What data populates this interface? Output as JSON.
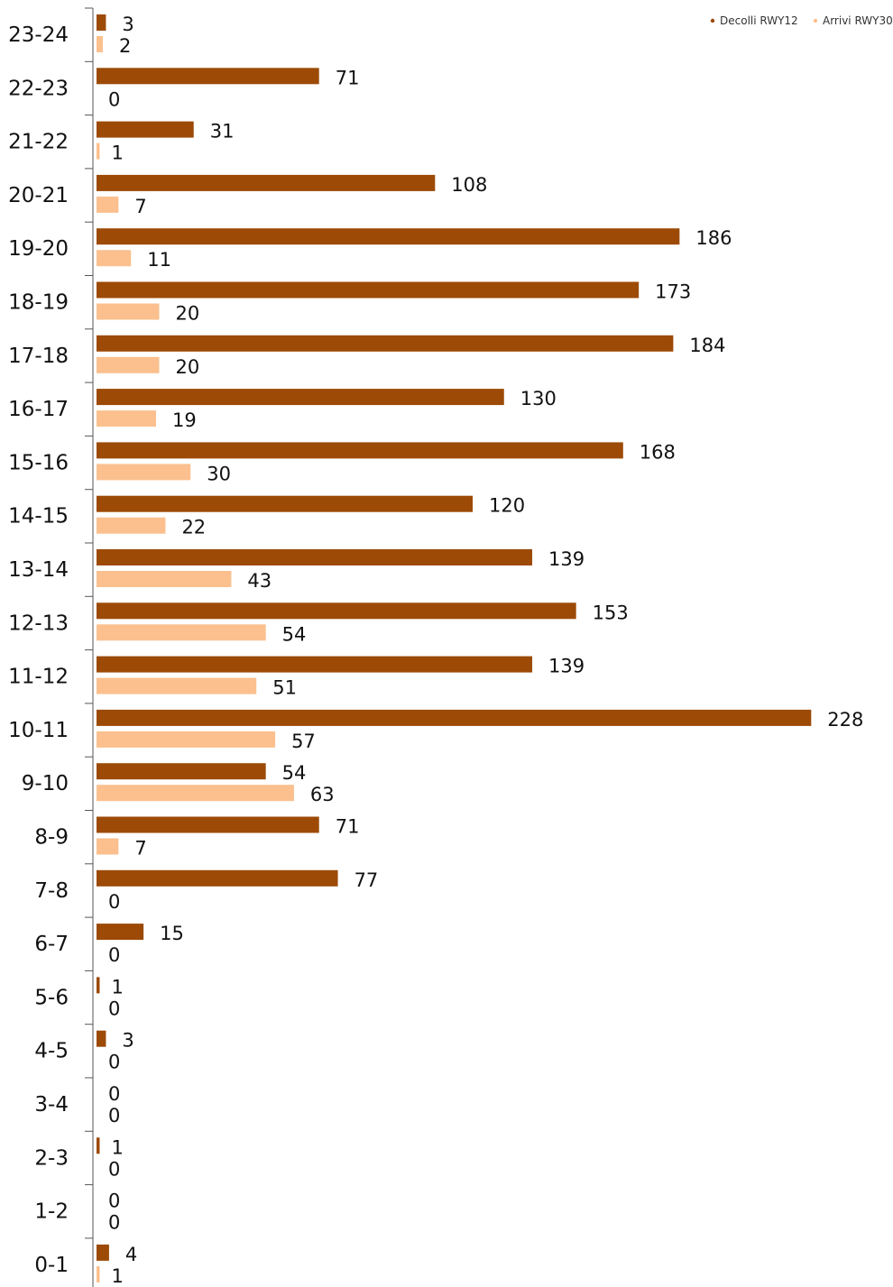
{
  "chart_data": {
    "type": "bar",
    "orientation": "horizontal",
    "categories": [
      "23-24",
      "22-23",
      "21-22",
      "20-21",
      "19-20",
      "18-19",
      "17-18",
      "16-17",
      "15-16",
      "14-15",
      "13-14",
      "12-13",
      "11-12",
      "10-11",
      "9-10",
      "8-9",
      "7-8",
      "6-7",
      "5-6",
      "4-5",
      "3-4",
      "2-3",
      "1-2",
      "0-1"
    ],
    "series": [
      {
        "name": "Decolli RWY12",
        "color": "#9C4A06",
        "values": [
          3,
          71,
          31,
          108,
          186,
          173,
          184,
          130,
          168,
          120,
          139,
          153,
          139,
          228,
          54,
          71,
          77,
          15,
          1,
          3,
          0,
          1,
          0,
          4
        ]
      },
      {
        "name": "Arrivi RWY30",
        "color": "#FBC08E",
        "values": [
          2,
          0,
          1,
          7,
          11,
          20,
          20,
          19,
          30,
          22,
          43,
          54,
          51,
          57,
          63,
          7,
          0,
          0,
          0,
          0,
          0,
          0,
          0,
          1
        ]
      }
    ],
    "xlim": [
      0,
      228
    ],
    "legend_position": "top-right",
    "grid": false,
    "title": "",
    "xlabel": "",
    "ylabel": ""
  }
}
